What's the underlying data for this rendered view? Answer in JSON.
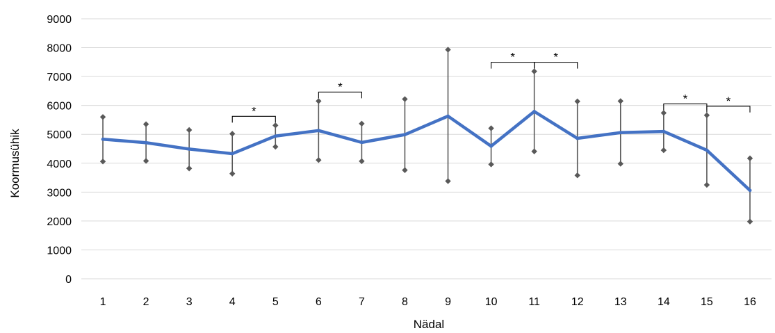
{
  "chart_data": {
    "type": "line",
    "xlabel": "Nädal",
    "ylabel": "Koormusühik",
    "ylim": [
      0,
      9000
    ],
    "yticks": [
      0,
      1000,
      2000,
      3000,
      4000,
      5000,
      6000,
      7000,
      8000,
      9000
    ],
    "categories": [
      "1",
      "2",
      "3",
      "4",
      "5",
      "6",
      "7",
      "8",
      "9",
      "10",
      "11",
      "12",
      "13",
      "14",
      "15",
      "16"
    ],
    "grid": true,
    "legend": "none",
    "colors": {
      "series": "#4472c4",
      "error": "#595959",
      "grid": "#d9d9d9"
    },
    "series": [
      {
        "values": [
          4830,
          4710,
          4490,
          4330,
          4940,
          5130,
          4720,
          4990,
          5630,
          4590,
          5790,
          4860,
          5060,
          5100,
          4450,
          3060
        ],
        "upper": [
          5600,
          5350,
          5150,
          5020,
          5310,
          6150,
          5370,
          6220,
          7930,
          5210,
          7180,
          6140,
          6150,
          5740,
          5660,
          4170
        ],
        "lower": [
          4060,
          4080,
          3820,
          3640,
          4570,
          4110,
          4070,
          3760,
          3380,
          3960,
          4410,
          3580,
          3980,
          4450,
          3250,
          1980
        ]
      }
    ],
    "significance": [
      {
        "from": "4",
        "to": "5",
        "label": "*"
      },
      {
        "from": "6",
        "to": "7",
        "label": "*"
      },
      {
        "from": "10",
        "to": "11",
        "label": "*"
      },
      {
        "from": "11",
        "to": "12",
        "label": "*"
      },
      {
        "from": "14",
        "to": "15",
        "label": "*"
      },
      {
        "from": "15",
        "to": "16",
        "label": "*"
      }
    ]
  }
}
